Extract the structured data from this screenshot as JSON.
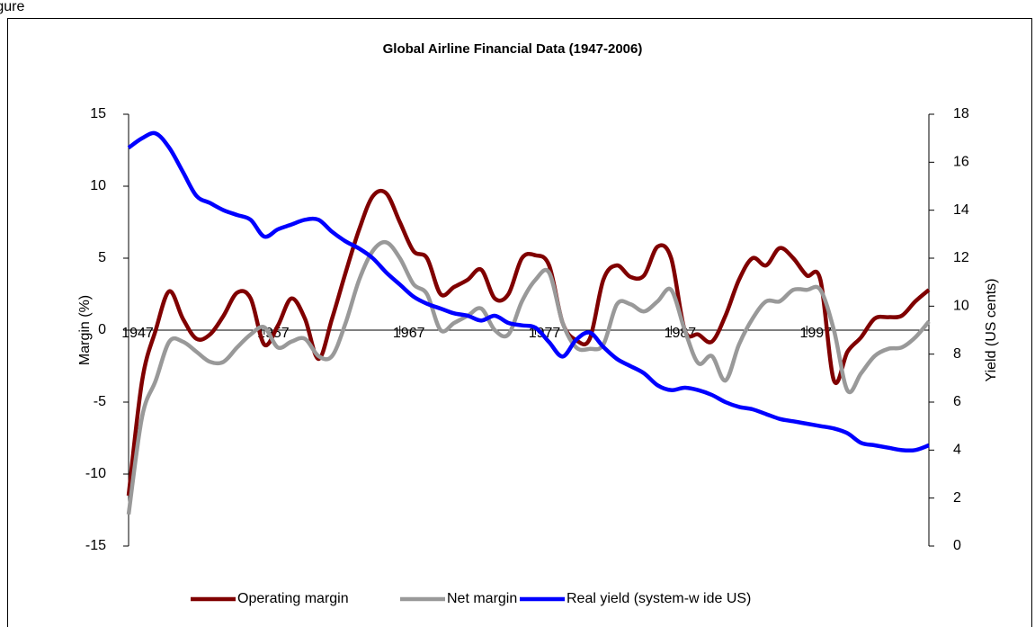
{
  "header": {
    "label": "Figure"
  },
  "chart_data": {
    "type": "line",
    "title": "Global Airline Financial Data (1947-2006)",
    "y_label": "Margin (%)",
    "y2_label": "Yield (US cents)",
    "x": [
      1947,
      1948,
      1949,
      1950,
      1951,
      1952,
      1953,
      1954,
      1955,
      1956,
      1957,
      1958,
      1959,
      1960,
      1961,
      1962,
      1963,
      1964,
      1965,
      1966,
      1967,
      1968,
      1969,
      1970,
      1971,
      1972,
      1973,
      1974,
      1975,
      1976,
      1977,
      1978,
      1979,
      1980,
      1981,
      1982,
      1983,
      1984,
      1985,
      1986,
      1987,
      1988,
      1989,
      1990,
      1991,
      1992,
      1993,
      1994,
      1995,
      1996,
      1997,
      1998,
      1999,
      2000,
      2001,
      2002,
      2003,
      2004,
      2005,
      2006
    ],
    "xlim": [
      1947,
      2006
    ],
    "xticks": [
      1947,
      1957,
      1967,
      1977,
      1987,
      1997
    ],
    "ylim": [
      -15,
      15
    ],
    "yticks": [
      -15,
      -10,
      -5,
      0,
      5,
      10,
      15
    ],
    "y2lim": [
      0,
      18
    ],
    "y2ticks": [
      0,
      2,
      4,
      6,
      8,
      10,
      12,
      14,
      16,
      18
    ],
    "legend": "bottom",
    "series": [
      {
        "name": "Operating margin",
        "color": "#800000",
        "values": [
          -11.5,
          -3.5,
          0,
          2.7,
          0.8,
          -0.6,
          -0.3,
          1,
          2.6,
          2.2,
          -1,
          0.3,
          2.2,
          0.8,
          -2,
          0.8,
          4,
          7,
          9.3,
          9.5,
          7.5,
          5.5,
          5,
          2.5,
          3,
          3.5,
          4.2,
          2.2,
          2.5,
          5,
          5.2,
          4.5,
          0.5,
          -0.7,
          -0.6,
          3.5,
          4.5,
          3.7,
          3.8,
          5.8,
          5,
          0,
          -0.3,
          -0.8,
          1,
          3.5,
          5,
          4.5,
          5.7,
          5,
          3.8,
          3.5,
          -3.5,
          -1.5,
          -0.5,
          0.8,
          0.9,
          1,
          2,
          2.8
        ]
      },
      {
        "name": "Net margin",
        "color": "#999999",
        "values": [
          -12.8,
          -6,
          -3.5,
          -0.8,
          -0.8,
          -1.5,
          -2.2,
          -2.2,
          -1.2,
          -0.3,
          0.2,
          -1.2,
          -0.8,
          -0.6,
          -1.8,
          -1.8,
          0.5,
          3.5,
          5.5,
          6.1,
          5,
          3.2,
          2.5,
          0,
          0.5,
          1,
          1.5,
          0,
          -0.3,
          2,
          3.5,
          4,
          0.5,
          -1.2,
          -1.3,
          -1,
          1.8,
          1.8,
          1.3,
          2,
          2.8,
          0,
          -2.3,
          -1.8,
          -3.5,
          -1,
          0.8,
          2,
          2,
          2.8,
          2.8,
          2.8,
          0,
          -4.2,
          -3,
          -1.8,
          -1.3,
          -1.2,
          -0.5,
          0.6
        ]
      },
      {
        "name": "Real yield (system-w ide US)",
        "color": "#0000ff",
        "axis": "y2",
        "values": [
          16.6,
          17,
          17.2,
          16.6,
          15.6,
          14.6,
          14.3,
          14,
          13.8,
          13.6,
          12.9,
          13.2,
          13.4,
          13.6,
          13.6,
          13.1,
          12.7,
          12.4,
          12,
          11.4,
          10.9,
          10.4,
          10.1,
          9.9,
          9.7,
          9.6,
          9.4,
          9.6,
          9.3,
          9.2,
          9.1,
          8.5,
          7.9,
          8.6,
          8.9,
          8.3,
          7.8,
          7.5,
          7.2,
          6.7,
          6.5,
          6.6,
          6.5,
          6.3,
          6,
          5.8,
          5.7,
          5.5,
          5.3,
          5.2,
          5.1,
          5,
          4.9,
          4.7,
          4.3,
          4.2,
          4.1,
          4,
          4,
          4.2
        ]
      }
    ]
  }
}
